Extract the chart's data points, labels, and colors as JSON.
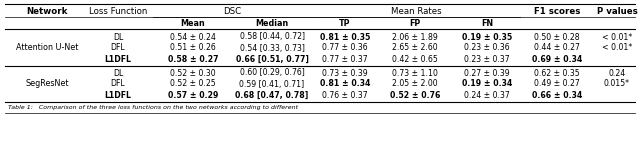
{
  "figsize": [
    6.4,
    1.41
  ],
  "dpi": 100,
  "background_color": "#ffffff",
  "networks": [
    "Attention U-Net",
    "SegResNet"
  ],
  "loss_functions": [
    "DL",
    "DFL",
    "L1DFL",
    "DL",
    "DFL",
    "L1DFL"
  ],
  "dsc_mean": [
    "0.54 ± 0.24",
    "0.51 ± 0.26",
    "0.58 ± 0.27",
    "0.52 ± 0.30",
    "0.52 ± 0.25",
    "0.57 ± 0.29"
  ],
  "dsc_median": [
    "0.58 [0.44, 0.72]",
    "0.54 [0.33, 0.73]",
    "0.66 [0.51, 0.77]",
    "0.60 [0.29, 0.76]",
    "0.59 [0.41, 0.71]",
    "0.68 [0.47, 0.78]"
  ],
  "tp": [
    "0.81 ± 0.35",
    "0.77 ± 0.36",
    "0.77 ± 0.37",
    "0.73 ± 0.39",
    "0.81 ± 0.34",
    "0.76 ± 0.37"
  ],
  "fp": [
    "2.06 ± 1.89",
    "2.65 ± 2.60",
    "0.42 ± 0.65",
    "0.73 ± 1.10",
    "2.05 ± 2.00",
    "0.52 ± 0.76"
  ],
  "fn": [
    "0.19 ± 0.35",
    "0.23 ± 0.36",
    "0.23 ± 0.37",
    "0.27 ± 0.39",
    "0.19 ± 0.34",
    "0.24 ± 0.37"
  ],
  "f1": [
    "0.50 ± 0.28",
    "0.44 ± 0.27",
    "0.69 ± 0.34",
    "0.62 ± 0.35",
    "0.49 ± 0.27",
    "0.66 ± 0.34"
  ],
  "pval": [
    "< 0.01*",
    "< 0.01*",
    "",
    "0.24",
    "0.015*",
    ""
  ],
  "bold_rows": [
    2,
    5
  ],
  "bold_cells": {
    "0": [
      "tp",
      "fn"
    ],
    "1": [],
    "2": [
      "loss",
      "dsc_mean",
      "dsc_median",
      "f1"
    ],
    "3": [],
    "4": [
      "tp",
      "fn"
    ],
    "5": [
      "loss",
      "dsc_mean",
      "dsc_median",
      "fp",
      "f1"
    ]
  },
  "caption": "Table 1:   Comparison of the three loss functions on the two networks according to different"
}
